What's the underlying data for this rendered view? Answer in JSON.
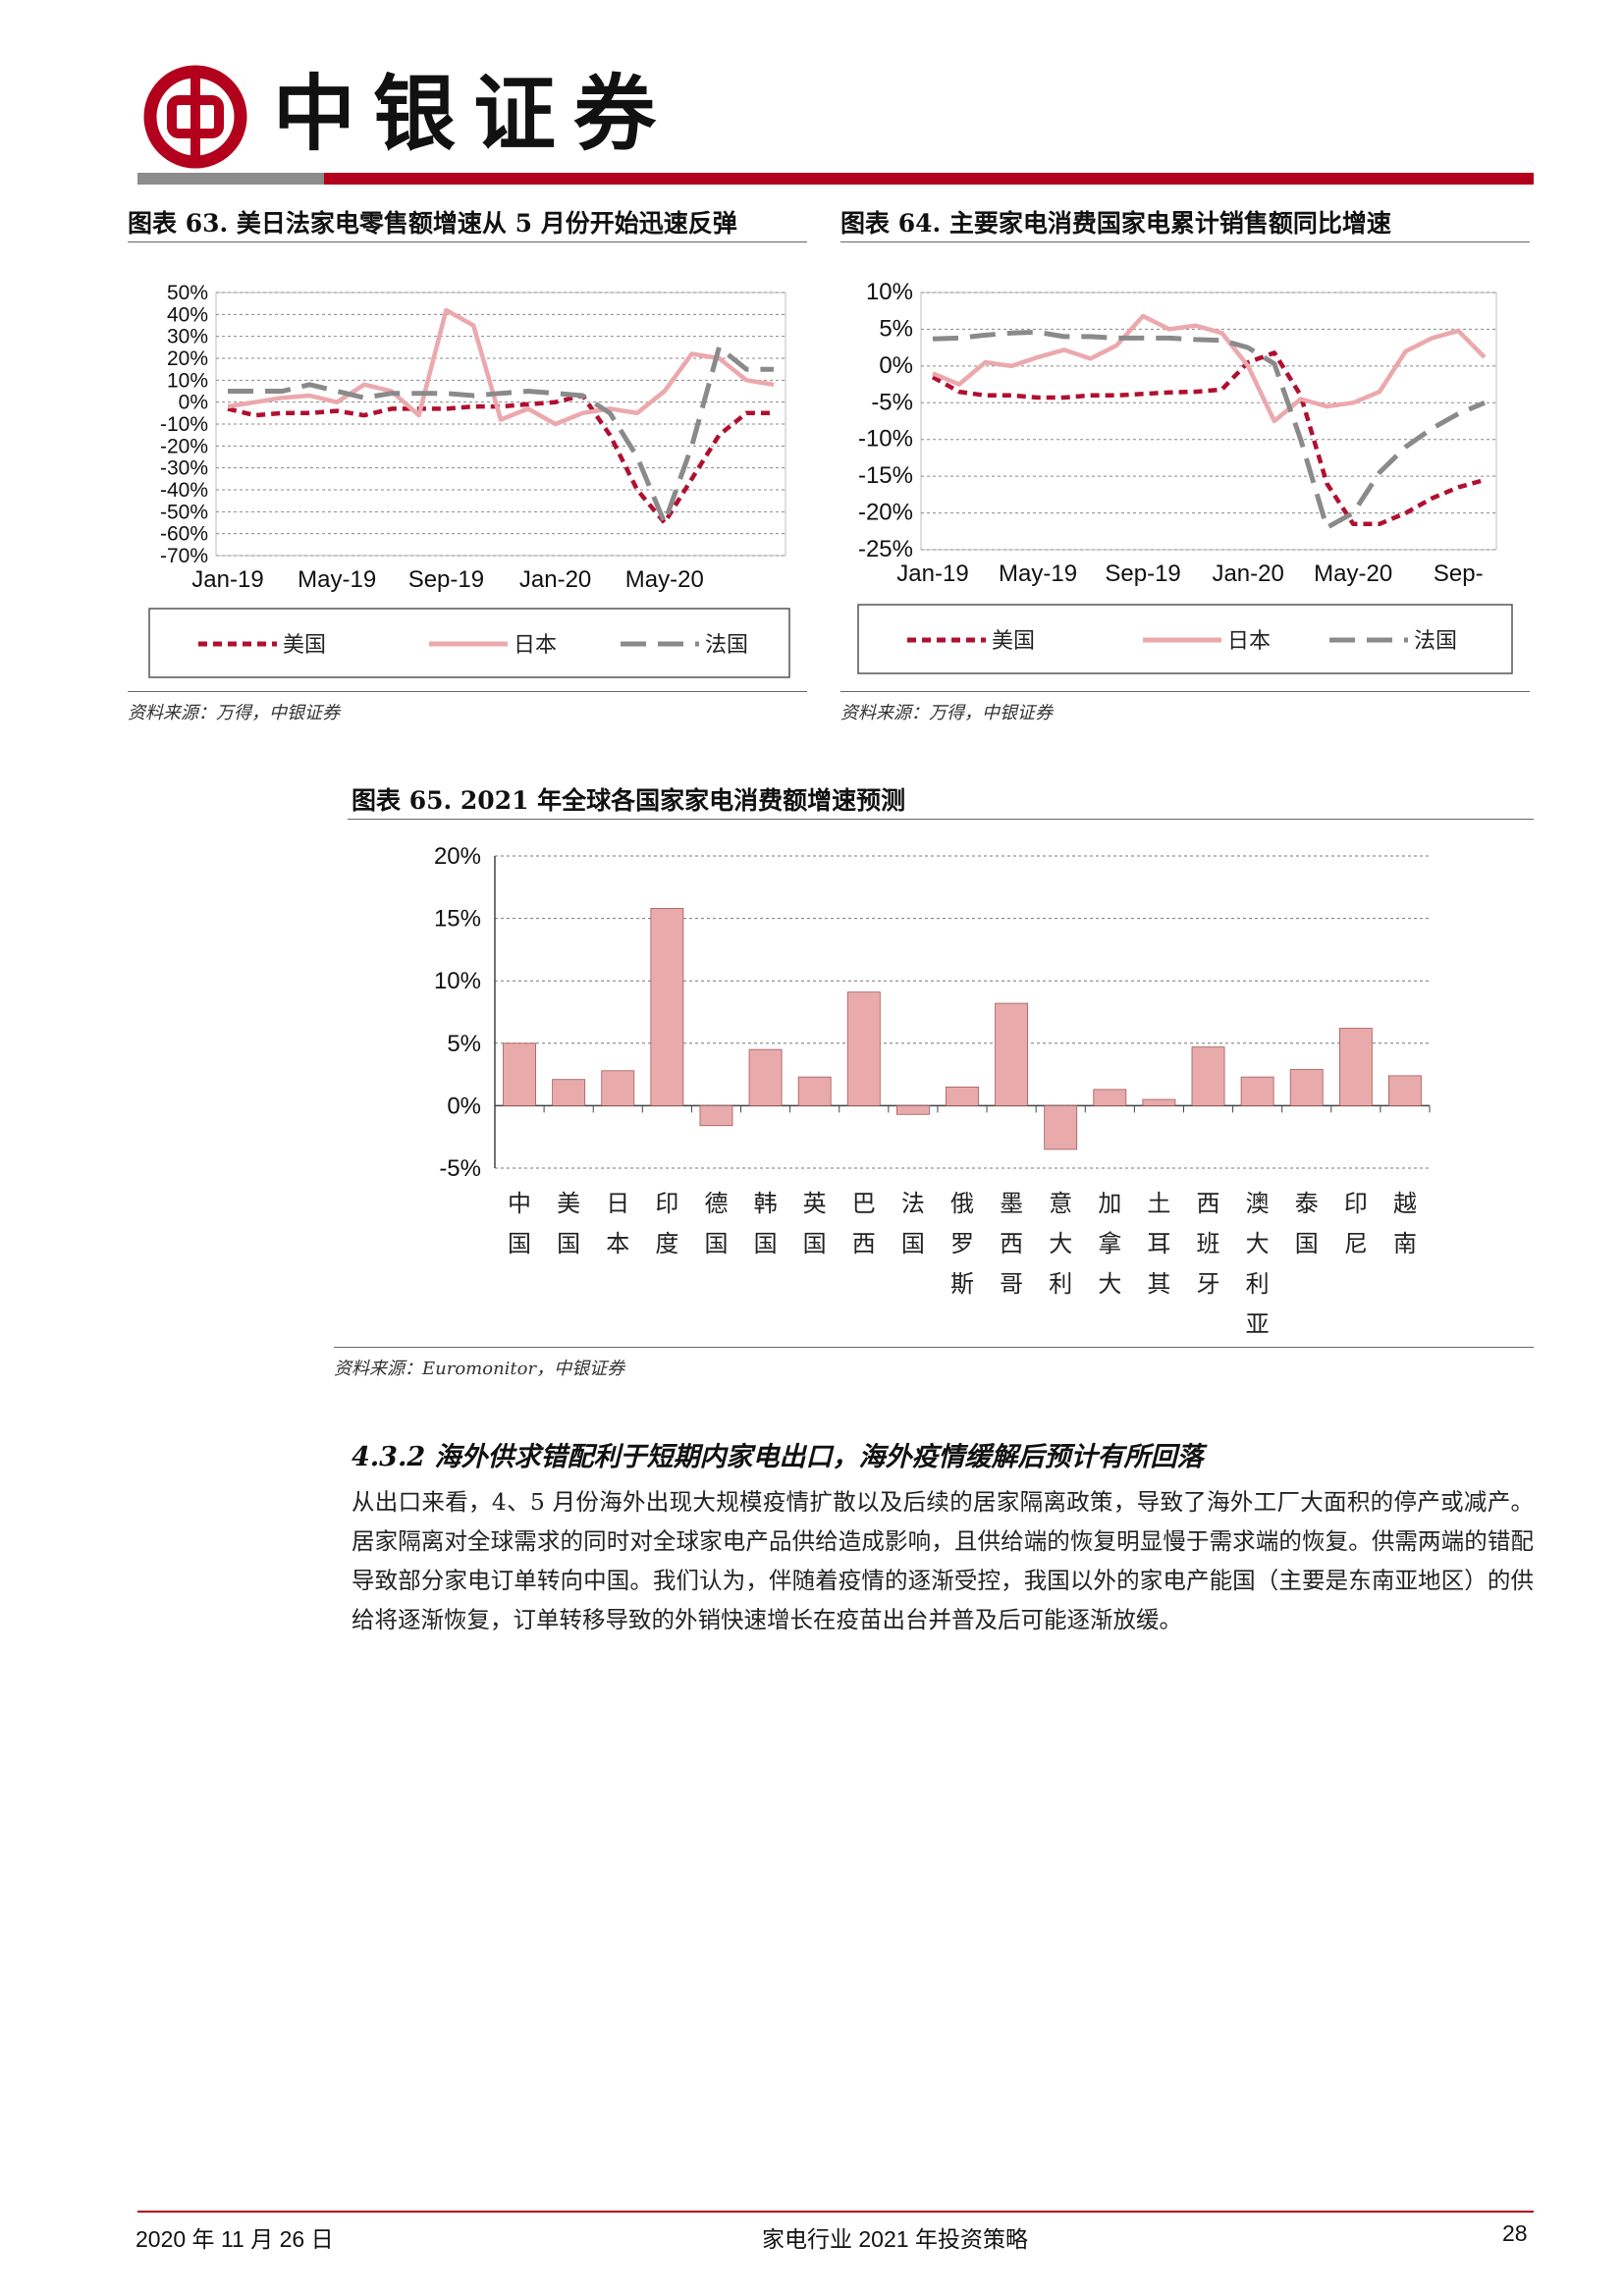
{
  "header": {
    "brand": "中银证券"
  },
  "figures": {
    "fig63": {
      "title": "图表 63. 美日法家电零售额增速从 5 月份开始迅速反弹",
      "source": "资料来源：万得，中银证券"
    },
    "fig64": {
      "title": "图表 64. 主要家电消费国家电累计销售额同比增速",
      "source": "资料来源：万得，中银证券"
    },
    "fig65": {
      "title": "图表 65. 2021 年全球各国家家电消费额增速预测",
      "source": "资料来源：Euromonitor，中银证券"
    }
  },
  "chart_data": [
    {
      "type": "line",
      "ylim": [
        -70,
        50
      ],
      "yticks": [
        "50%",
        "40%",
        "30%",
        "20%",
        "10%",
        "0%",
        "-10%",
        "-20%",
        "-30%",
        "-40%",
        "-50%",
        "-60%",
        "-70%"
      ],
      "xticks": [
        "Jan-19",
        "May-19",
        "Sep-19",
        "Jan-20",
        "May-20"
      ],
      "x": [
        "Jan-19",
        "Feb-19",
        "Mar-19",
        "Apr-19",
        "May-19",
        "Jun-19",
        "Jul-19",
        "Aug-19",
        "Sep-19",
        "Oct-19",
        "Nov-19",
        "Dec-19",
        "Jan-20",
        "Feb-20",
        "Mar-20",
        "Apr-20",
        "May-20",
        "Jun-20",
        "Jul-20",
        "Aug-20",
        "Sep-20"
      ],
      "legend_position": "bottom",
      "series": [
        {
          "name": "美国",
          "style": "dotted",
          "color": "#b01030",
          "values": [
            -3,
            -6,
            -5,
            -5,
            -4,
            -6,
            -3,
            -3,
            -3,
            -2,
            -2,
            -1,
            0,
            3,
            -15,
            -40,
            -55,
            -35,
            -15,
            -5,
            -5
          ]
        },
        {
          "name": "日本",
          "style": "solid",
          "color": "#eba8ad",
          "values": [
            -2,
            0,
            2,
            3,
            0,
            8,
            5,
            -6,
            42,
            35,
            -8,
            -3,
            -10,
            -5,
            -3,
            -5,
            5,
            22,
            20,
            10,
            8
          ]
        },
        {
          "name": "法国",
          "style": "dashed",
          "color": "#8a8a8a",
          "values": [
            5,
            5,
            5,
            8,
            5,
            2,
            4,
            4,
            4,
            3,
            4,
            5,
            4,
            3,
            -5,
            -25,
            -55,
            -20,
            25,
            15,
            15
          ]
        }
      ]
    },
    {
      "type": "line",
      "ylim": [
        -25,
        10
      ],
      "yticks": [
        "10%",
        "5%",
        "0%",
        "-5%",
        "-10%",
        "-15%",
        "-20%",
        "-25%"
      ],
      "xticks": [
        "Jan-19",
        "May-19",
        "Sep-19",
        "Jan-20",
        "May-20",
        "Sep-"
      ],
      "x": [
        "Jan-19",
        "Feb-19",
        "Mar-19",
        "Apr-19",
        "May-19",
        "Jun-19",
        "Jul-19",
        "Aug-19",
        "Sep-19",
        "Oct-19",
        "Nov-19",
        "Dec-19",
        "Jan-20",
        "Feb-20",
        "Mar-20",
        "Apr-20",
        "May-20",
        "Jun-20",
        "Jul-20",
        "Aug-20",
        "Sep-20",
        "Oct-20"
      ],
      "legend_position": "bottom",
      "series": [
        {
          "name": "美国",
          "style": "dotted",
          "color": "#b01030",
          "values": [
            -1.5,
            -3.5,
            -4,
            -4,
            -4.3,
            -4.3,
            -4,
            -4,
            -3.8,
            -3.6,
            -3.5,
            -3.2,
            0.5,
            1.8,
            -4,
            -16,
            -21.5,
            -21.5,
            -20,
            -18,
            -16.5,
            -15.5
          ]
        },
        {
          "name": "日本",
          "style": "solid",
          "color": "#eba8ad",
          "values": [
            -1,
            -2.5,
            0.5,
            0,
            1.2,
            2.2,
            1,
            2.8,
            6.8,
            5,
            5.5,
            4.5,
            0,
            -7.5,
            -4.5,
            -5.5,
            -5,
            -3.5,
            2,
            3.8,
            4.8,
            1.2
          ]
        },
        {
          "name": "法国",
          "style": "dashed",
          "color": "#8a8a8a",
          "values": [
            3.7,
            3.8,
            4.2,
            4.5,
            4.6,
            4,
            4,
            3.8,
            3.8,
            3.8,
            3.6,
            3.5,
            2.5,
            0.3,
            -10,
            -22,
            -20,
            -14.5,
            -11,
            -8.5,
            -6.5,
            -5
          ]
        }
      ]
    },
    {
      "type": "bar",
      "ylim": [
        -5,
        20
      ],
      "yticks": [
        "20%",
        "15%",
        "10%",
        "5%",
        "0%",
        "-5%"
      ],
      "categories": [
        "中国",
        "美国",
        "日本",
        "印度",
        "德国",
        "韩国",
        "英国",
        "巴西",
        "法国",
        "俄罗斯",
        "墨西哥",
        "意大利",
        "加拿大",
        "土耳其",
        "西班牙",
        "澳大利亚",
        "泰国",
        "印尼",
        "越南"
      ],
      "values": [
        5.0,
        2.1,
        2.8,
        15.8,
        -1.6,
        4.5,
        2.3,
        9.1,
        -0.7,
        1.5,
        8.2,
        -3.5,
        1.3,
        0.5,
        4.7,
        2.3,
        2.9,
        6.2,
        2.4
      ],
      "color": "#e8aaaa"
    }
  ],
  "section": {
    "heading": "4.3.2 海外供求错配利于短期内家电出口，海外疫情缓解后预计有所回落",
    "body": "从出口来看，4、5 月份海外出现大规模疫情扩散以及后续的居家隔离政策，导致了海外工厂大面积的停产或减产。居家隔离对全球需求的同时对全球家电产品供给造成影响，且供给端的恢复明显慢于需求端的恢复。供需两端的错配导致部分家电订单转向中国。我们认为，伴随着疫情的逐渐受控，我国以外的家电产能国（主要是东南亚地区）的供给将逐渐恢复，订单转移导致的外销快速增长在疫苗出台并普及后可能逐渐放缓。"
  },
  "footer": {
    "date": "2020 年 11 月 26 日",
    "doc_title": "家电行业 2021 年投资策略",
    "page": "28"
  },
  "colors": {
    "brand_red": "#b3001c",
    "us": "#b01030",
    "jp": "#eba8ad",
    "fr": "#8a8a8a",
    "bar": "#e8aaaa"
  }
}
